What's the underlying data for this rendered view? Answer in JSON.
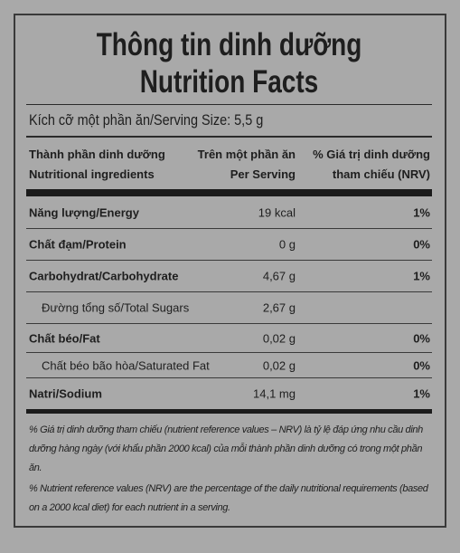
{
  "title": [
    "Thông tin dinh dưỡng",
    "Nutrition Facts"
  ],
  "serving_size": "Kích cỡ một phần ăn/Serving Size: 5,5 g",
  "header": {
    "ingredient": [
      "Thành phần dinh dưỡng",
      "Nutritional ingredients"
    ],
    "per_serving": [
      "Trên một phần ăn",
      "Per Serving"
    ],
    "nrv": [
      "% Giá trị dinh dưỡng",
      "tham chiếu (NRV)"
    ]
  },
  "rows": [
    {
      "name": "Năng lượng/Energy",
      "amount": "19 kcal",
      "nrv": "1%"
    },
    {
      "name": "Chất đạm/Protein",
      "amount": "0 g",
      "nrv": "0%"
    },
    {
      "name": "Carbohydrat/Carbohydrate",
      "amount": "4,67 g",
      "nrv": "1%"
    },
    {
      "name": "Đường tổng số/Total Sugars",
      "amount": "2,67 g"
    },
    {
      "name": "Chất béo/Fat",
      "amount": "0,02 g",
      "nrv": "0%"
    },
    {
      "name": "Chất béo bão hòa/Saturated Fat",
      "amount": "0,02 g",
      "nrv": "0%"
    },
    {
      "name": "Natri/Sodium",
      "amount": "14,1 mg",
      "nrv": "1%"
    }
  ],
  "footnotes": [
    "% Giá trị dinh dưỡng tham chiếu (nutrient reference values – NRV) là tỷ lệ đáp ứng nhu cầu dinh dưỡng hàng ngày (với khẩu phần 2000 kcal) của mỗi thành phần dinh dưỡng có trong một phần ăn.",
    "% Nutrient reference values (NRV) are the percentage of the daily nutritional requirements (based on a 2000 kcal diet) for each nutrient in a serving."
  ]
}
